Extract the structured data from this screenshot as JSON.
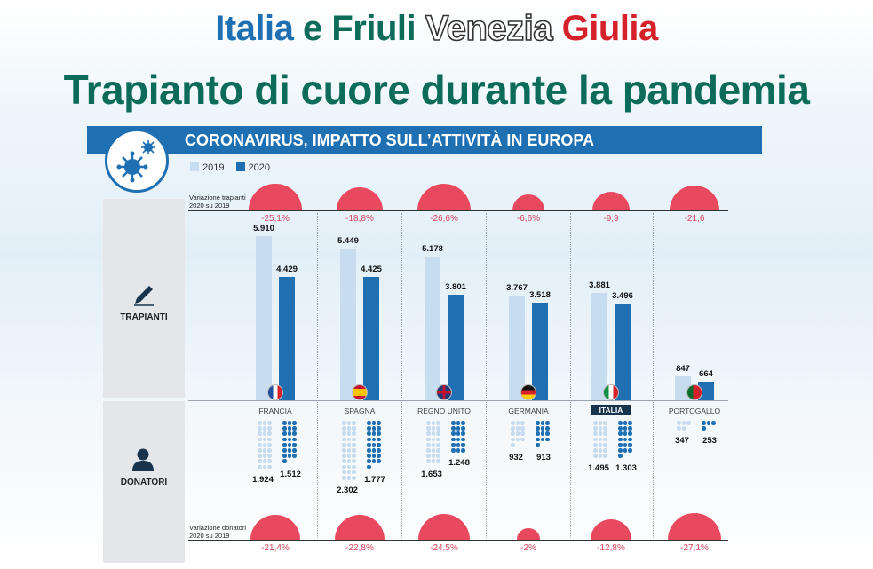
{
  "title": {
    "line1_parts": [
      "Italia",
      "e",
      "Friuli",
      "Venezia",
      "Giulia"
    ],
    "line2": "Trapianto di cuore durante la pandemia"
  },
  "banner": "CORONAVIRUS, IMPATTO SULL’ATTIVITÀ IN EUROPA",
  "legend": [
    {
      "label": "2019",
      "color": "#c7dcee"
    },
    {
      "label": "2020",
      "color": "#1f6fb3"
    }
  ],
  "labels": {
    "trapianti_variation": "Variazione trapianti\n2020 su 2019",
    "donatori_variation": "Variazione donatori\n2020 su 2019",
    "trapianti": "TRAPIANTI",
    "donatori": "DONATORI"
  },
  "colors": {
    "bar_2019": "#c7dcee",
    "bar_2020": "#1f6fb3",
    "bubble": "#e8495f",
    "highlight": "#17334d"
  },
  "chart_data": {
    "type": "bar",
    "categories": [
      "FRANCIA",
      "SPAGNA",
      "REGNO UNITO",
      "GERMANIA",
      "ITALIA",
      "PORTOGALLO"
    ],
    "highlight": "ITALIA",
    "transplants": {
      "series": [
        {
          "name": "2019",
          "values": [
            5910,
            5449,
            5178,
            3767,
            3881,
            847
          ]
        },
        {
          "name": "2020",
          "values": [
            4429,
            4425,
            3801,
            3518,
            3496,
            664
          ]
        }
      ],
      "labels_2019": [
        "5.910",
        "5.449",
        "5.178",
        "3.767",
        "3.881",
        "847"
      ],
      "labels_2020": [
        "4.429",
        "4.425",
        "3.801",
        "3.518",
        "3.496",
        "664"
      ],
      "variation": [
        -25.1,
        -18.8,
        -26.6,
        -6.6,
        -9.9,
        -21.6
      ],
      "variation_labels": [
        "-25,1%",
        "-18,8%",
        "-26,6%",
        "-6,6%",
        "-9,9",
        "-21,6"
      ]
    },
    "donors": {
      "series": [
        {
          "name": "2019",
          "values": [
            1924,
            2302,
            1653,
            932,
            1495,
            347
          ]
        },
        {
          "name": "2020",
          "values": [
            1512,
            1777,
            1248,
            913,
            1303,
            253
          ]
        }
      ],
      "labels_2019": [
        "1.924",
        "2.302",
        "1.653",
        "932",
        "1.495",
        "347"
      ],
      "labels_2020": [
        "1.512",
        "1.777",
        "1.248",
        "913",
        "1.303",
        "253"
      ],
      "variation": [
        -21.4,
        -22.8,
        -24.5,
        -2,
        -12.8,
        -27.1
      ],
      "variation_labels": [
        "-21,4%",
        "-22,8%",
        "-24,5%",
        "-2%",
        "-12,8%",
        "-27,1%"
      ]
    },
    "flags": [
      "flag-france",
      "flag-spain",
      "flag-uk",
      "flag-germany",
      "flag-italy",
      "flag-portugal"
    ]
  }
}
